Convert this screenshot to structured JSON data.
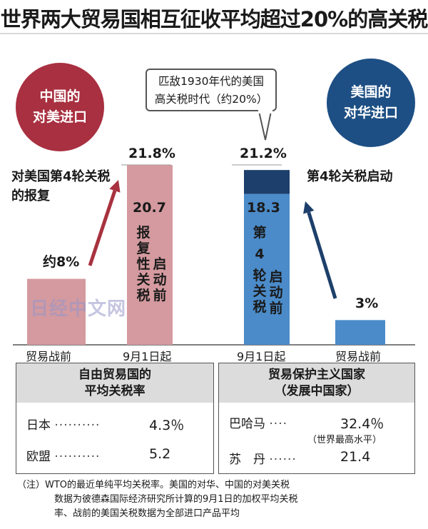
{
  "title": "世界两大贸易国相互征收平均超过20%的高关税",
  "china_badge": {
    "line1": "中国的",
    "line2": "对美进口"
  },
  "us_badge": {
    "line1": "美国的",
    "line2": "对华进口"
  },
  "callout": {
    "line1": "匹敌1930年代的美国",
    "line2": "高关税时代（约20%）"
  },
  "chart_data": {
    "type": "bar",
    "unit": "%",
    "panels": [
      {
        "name": "中国的对美进口",
        "categories": [
          "贸易战前",
          "9月1日起"
        ],
        "values": [
          8,
          21.8
        ],
        "value_labels": [
          "约8%",
          "21.8%"
        ],
        "stack_base": {
          "category": "9月1日起",
          "value": 20.7,
          "label": "20.7",
          "caption": [
            "报",
            "复",
            "性",
            "关",
            "税"
          ],
          "caption2": [
            "启",
            "动",
            "前"
          ]
        },
        "annotation": "对美国第4轮关税的报复",
        "colors": {
          "prewar": "#d49a9f",
          "current": "#d49a9f"
        }
      },
      {
        "name": "美国的对华进口",
        "categories": [
          "9月1日起",
          "贸易战前"
        ],
        "values": [
          21.2,
          3
        ],
        "value_labels": [
          "21.2%",
          "3%"
        ],
        "stack_base": {
          "category": "9月1日起",
          "value": 18.3,
          "label": "18.3",
          "caption": [
            "第",
            "4",
            "轮",
            "关",
            "税"
          ],
          "caption2": [
            "启",
            "动",
            "前"
          ]
        },
        "annotation": "第4轮关税启动",
        "colors": {
          "base": "#4b8bc9",
          "top": "#1d3f6b",
          "prewar": "#4b8bc9"
        }
      }
    ]
  },
  "free_trade": {
    "head1": "自由贸易国的",
    "head2": "平均关税率",
    "rows": [
      {
        "name": "日本",
        "dots": "··········",
        "value": "4.3％"
      },
      {
        "name": "欧盟",
        "dots": "··········",
        "value": "5.2"
      }
    ]
  },
  "protectionist": {
    "head1": "贸易保护主义国家",
    "head2": "（发展中国家）",
    "rows": [
      {
        "name": "巴哈马",
        "dots": "····",
        "value": "32.4％",
        "sub": "（世界最高水平）"
      },
      {
        "name": "苏　丹",
        "dots": "······",
        "value": "21.4",
        "sub": ""
      }
    ]
  },
  "note": {
    "line1": "（注）WTO的最近单纯平均关税率。美国的对华、中国的对美关税",
    "line2": "数据为彼德森国际经济研究所计算的9月1日的加权平均关税",
    "line3": "率、战前的美国关税数据为全部进口产品平均"
  },
  "watermark": "日经中文网"
}
